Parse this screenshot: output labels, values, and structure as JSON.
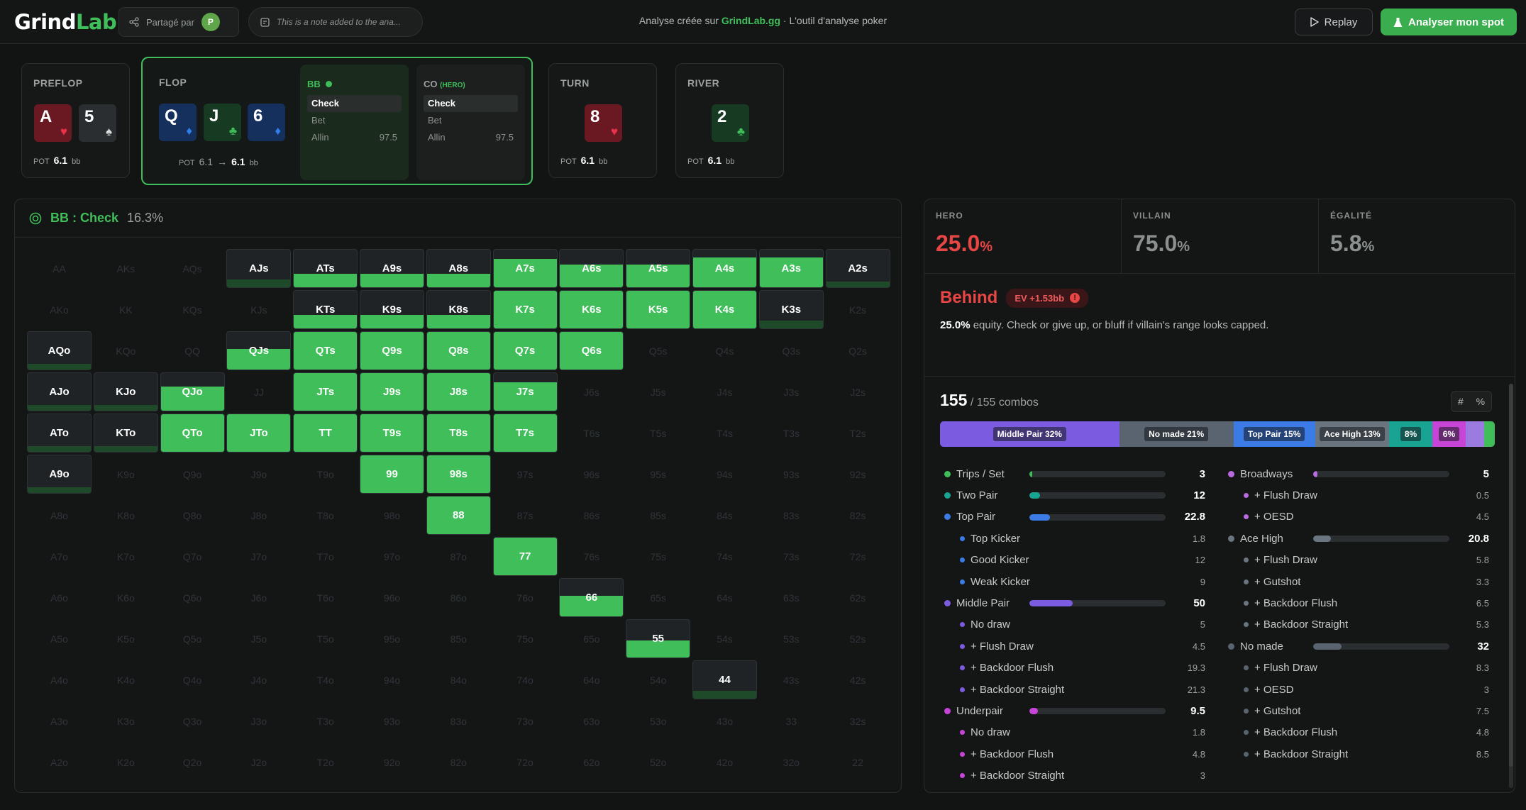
{
  "topbar": {
    "logo_a": "Grind",
    "logo_b": "Lab",
    "shared_by": "Partagé par",
    "avatar_initial": "P",
    "note": "This is a note added to the ana...",
    "tagline_pre": "Analyse créée sur",
    "tagline_brand": "GrindLab.gg",
    "tagline_post": "· L'outil d'analyse poker",
    "replay_label": "Replay",
    "analyse_label": "Analyser mon spot"
  },
  "streets": {
    "preflop": {
      "label": "PREFLOP",
      "cards": [
        {
          "rank": "A",
          "suit": "♥",
          "color": "red"
        },
        {
          "rank": "5",
          "suit": "♠",
          "color": "gray"
        }
      ],
      "pot_label": "POT",
      "pot": "6.1",
      "unit": "bb"
    },
    "flop": {
      "label": "FLOP",
      "cards": [
        {
          "rank": "Q",
          "suit": "♦",
          "color": "blue"
        },
        {
          "rank": "J",
          "suit": "♣",
          "color": "green"
        },
        {
          "rank": "6",
          "suit": "♦",
          "color": "blue"
        }
      ],
      "pot_label": "POT",
      "pot_from": "6.1",
      "pot": "6.1",
      "unit": "bb"
    },
    "turn": {
      "label": "TURN",
      "cards": [
        {
          "rank": "8",
          "suit": "♥",
          "color": "red"
        }
      ],
      "pot_label": "POT",
      "pot": "6.1",
      "unit": "bb"
    },
    "river": {
      "label": "RIVER",
      "cards": [
        {
          "rank": "2",
          "suit": "♣",
          "color": "green"
        }
      ],
      "pot_label": "POT",
      "pot": "6.1",
      "unit": "bb"
    }
  },
  "actions": {
    "bb": {
      "player": "BB",
      "tag": "",
      "rows": [
        {
          "label": "Check",
          "value": "",
          "selected": true
        },
        {
          "label": "Bet",
          "value": "",
          "selected": false
        },
        {
          "label": "Allin",
          "value": "97.5",
          "selected": false
        }
      ]
    },
    "co": {
      "player": "CO",
      "tag": "(HERO)",
      "rows": [
        {
          "label": "Check",
          "value": "",
          "selected": true
        },
        {
          "label": "Bet",
          "value": "",
          "selected": false
        },
        {
          "label": "Allin",
          "value": "97.5",
          "selected": false
        }
      ]
    }
  },
  "range": {
    "title": "BB : Check",
    "percent": "16.3%",
    "grid_cells": [
      "AA",
      "AKs",
      "AQs",
      "AJs",
      "ATs",
      "A9s",
      "A8s",
      "A7s",
      "A6s",
      "A5s",
      "A4s",
      "A3s",
      "A2s",
      "AKo",
      "KK",
      "KQs",
      "KJs",
      "KTs",
      "K9s",
      "K8s",
      "K7s",
      "K6s",
      "K5s",
      "K4s",
      "K3s",
      "K2s",
      "AQo",
      "KQo",
      "QQ",
      "QJs",
      "QTs",
      "Q9s",
      "Q8s",
      "Q7s",
      "Q6s",
      "Q5s",
      "Q4s",
      "Q3s",
      "Q2s",
      "AJo",
      "KJo",
      "QJo",
      "JJ",
      "JTs",
      "J9s",
      "J8s",
      "J7s",
      "J6s",
      "J5s",
      "J4s",
      "J3s",
      "J2s",
      "ATo",
      "KTo",
      "QTo",
      "JTo",
      "TT",
      "T9s",
      "T8s",
      "T7s",
      "T6s",
      "T5s",
      "T4s",
      "T3s",
      "T2s",
      "A9o",
      "K9o",
      "Q9o",
      "J9o",
      "T9o",
      "99",
      "98s",
      "97s",
      "96s",
      "95s",
      "94s",
      "93s",
      "92s",
      "A8o",
      "K8o",
      "Q8o",
      "J8o",
      "T8o",
      "98o",
      "88",
      "87s",
      "86s",
      "85s",
      "84s",
      "83s",
      "82s",
      "A7o",
      "K7o",
      "Q7o",
      "J7o",
      "T7o",
      "97o",
      "87o",
      "77",
      "76s",
      "75s",
      "74s",
      "73s",
      "72s",
      "A6o",
      "K6o",
      "Q6o",
      "J6o",
      "T6o",
      "96o",
      "86o",
      "76o",
      "66",
      "65s",
      "64s",
      "63s",
      "62s",
      "A5o",
      "K5o",
      "Q5o",
      "J5o",
      "T5o",
      "95o",
      "85o",
      "75o",
      "65o",
      "55",
      "54s",
      "53s",
      "52s",
      "A4o",
      "K4o",
      "Q4o",
      "J4o",
      "T4o",
      "94o",
      "84o",
      "74o",
      "64o",
      "54o",
      "44",
      "43s",
      "42s",
      "A3o",
      "K3o",
      "Q3o",
      "J3o",
      "T3o",
      "93o",
      "83o",
      "73o",
      "63o",
      "53o",
      "43o",
      "33",
      "32s",
      "A2o",
      "K2o",
      "Q2o",
      "J2o",
      "T2o",
      "92o",
      "82o",
      "72o",
      "62o",
      "52o",
      "42o",
      "32o",
      "22"
    ],
    "frequencies": {
      "AJs": 0.2,
      "ATs": 0.35,
      "A9s": 0.35,
      "A8s": 0.35,
      "A7s": 0.75,
      "A6s": 0.6,
      "A5s": 0.6,
      "A4s": 0.8,
      "A3s": 0.8,
      "A2s": 0.15,
      "KTs": 0.35,
      "K9s": 0.35,
      "K8s": 0.35,
      "K7s": 1,
      "K6s": 1,
      "K5s": 1,
      "K4s": 1,
      "K3s": 0.2,
      "AQo": 0.15,
      "QJs": 0.55,
      "QTs": 1,
      "Q9s": 1,
      "Q8s": 1,
      "Q7s": 1,
      "Q6s": 1,
      "AJo": 0.15,
      "KJo": 0.15,
      "QJo": 0.65,
      "JTs": 1,
      "J9s": 1,
      "J8s": 1,
      "J7s": 0.75,
      "ATo": 0.15,
      "KTo": 0.15,
      "QTo": 1,
      "JTo": 1,
      "TT": 1,
      "T9s": 1,
      "T8s": 1,
      "T7s": 1,
      "A9o": 0.15,
      "99": 1,
      "98s": 1,
      "88": 1,
      "77": 1,
      "66": 0.55,
      "55": 0.45,
      "44": 0.2
    }
  },
  "equity": {
    "hero_label": "HERO",
    "hero": "25.0",
    "hero_unit": "%",
    "villain_label": "VILLAIN",
    "villain": "75.0",
    "villain_unit": "%",
    "tie_label": "ÉGALITÉ",
    "tie": "5.8",
    "tie_unit": "%"
  },
  "verdict": {
    "word": "Behind",
    "ev": "EV +1.53bb",
    "equity_bold": "25.0%",
    "advice": "equity. Check or give up, or bluff if villain's range looks capped."
  },
  "combos": {
    "count": "155",
    "total": "/ 155 combos",
    "hash": "#",
    "pct": "%",
    "bar": [
      {
        "label": "Middle Pair 32%",
        "pct": 32.3,
        "color": "#7b5be0"
      },
      {
        "label": "No made 21%",
        "pct": 20.6,
        "color": "#5a6470"
      },
      {
        "label": "Top Pair 15%",
        "pct": 14.7,
        "color": "#3b7be6"
      },
      {
        "label": "Ace High 13%",
        "pct": 13.4,
        "color": "#6a7580"
      },
      {
        "label": "8%",
        "pct": 7.7,
        "color": "#18a392"
      },
      {
        "label": "6%",
        "pct": 6.1,
        "color": "#c645d6"
      },
      {
        "label": "",
        "pct": 3.3,
        "color": "#9b7be0"
      },
      {
        "label": "",
        "pct": 1.9,
        "color": "#3fbe5a"
      }
    ]
  },
  "breakdown_left": [
    {
      "label": "Trips / Set",
      "value": "3",
      "color": "#3fbe5a",
      "bar": 0.02,
      "sub": false
    },
    {
      "label": "Two Pair",
      "value": "12",
      "color": "#18a392",
      "bar": 0.08,
      "sub": false
    },
    {
      "label": "Top Pair",
      "value": "22.8",
      "color": "#3b7be6",
      "bar": 0.15,
      "sub": false
    },
    {
      "label": "Top Kicker",
      "value": "1.8",
      "color": "#3b7be6",
      "sub": true
    },
    {
      "label": "Good Kicker",
      "value": "12",
      "color": "#3b7be6",
      "sub": true
    },
    {
      "label": "Weak Kicker",
      "value": "9",
      "color": "#3b7be6",
      "sub": true
    },
    {
      "label": "Middle Pair",
      "value": "50",
      "color": "#7b5be0",
      "bar": 0.32,
      "sub": false
    },
    {
      "label": "No draw",
      "value": "5",
      "color": "#7b5be0",
      "sub": true
    },
    {
      "label": "+ Flush Draw",
      "value": "4.5",
      "color": "#7b5be0",
      "sub": true
    },
    {
      "label": "+ Backdoor Flush",
      "value": "19.3",
      "color": "#7b5be0",
      "sub": true
    },
    {
      "label": "+ Backdoor Straight",
      "value": "21.3",
      "color": "#7b5be0",
      "sub": true
    },
    {
      "label": "Underpair",
      "value": "9.5",
      "color": "#c645d6",
      "bar": 0.06,
      "sub": false
    },
    {
      "label": "No draw",
      "value": "1.8",
      "color": "#c645d6",
      "sub": true
    },
    {
      "label": "+ Backdoor Flush",
      "value": "4.8",
      "color": "#c645d6",
      "sub": true
    },
    {
      "label": "+ Backdoor Straight",
      "value": "3",
      "color": "#c645d6",
      "sub": true
    }
  ],
  "breakdown_right": [
    {
      "label": "Broadways",
      "value": "5",
      "color": "#b86ae0",
      "bar": 0.03,
      "sub": false
    },
    {
      "label": "+ Flush Draw",
      "value": "0.5",
      "color": "#b86ae0",
      "sub": true
    },
    {
      "label": "+ OESD",
      "value": "4.5",
      "color": "#b86ae0",
      "sub": true
    },
    {
      "label": "Ace High",
      "value": "20.8",
      "color": "#6a7580",
      "bar": 0.13,
      "sub": false
    },
    {
      "label": "+ Flush Draw",
      "value": "5.8",
      "color": "#6a7580",
      "sub": true
    },
    {
      "label": "+ Gutshot",
      "value": "3.3",
      "color": "#6a7580",
      "sub": true
    },
    {
      "label": "+ Backdoor Flush",
      "value": "6.5",
      "color": "#6a7580",
      "sub": true
    },
    {
      "label": "+ Backdoor Straight",
      "value": "5.3",
      "color": "#6a7580",
      "sub": true
    },
    {
      "label": "No made",
      "value": "32",
      "color": "#5a6470",
      "bar": 0.21,
      "sub": false
    },
    {
      "label": "+ Flush Draw",
      "value": "8.3",
      "color": "#5a6470",
      "sub": true
    },
    {
      "label": "+ OESD",
      "value": "3",
      "color": "#5a6470",
      "sub": true
    },
    {
      "label": "+ Gutshot",
      "value": "7.5",
      "color": "#5a6470",
      "sub": true
    },
    {
      "label": "+ Backdoor Flush",
      "value": "4.8",
      "color": "#5a6470",
      "sub": true
    },
    {
      "label": "+ Backdoor Straight",
      "value": "8.5",
      "color": "#5a6470",
      "sub": true
    }
  ],
  "colors": {
    "accent": "#3fbe5a",
    "danger": "#e84545",
    "muted": "#8b908e"
  },
  "icons": {
    "share": "share-icon",
    "note": "note-icon",
    "replay": "play-icon",
    "analyse": "flask-icon",
    "target": "target-icon",
    "info": "info-icon"
  }
}
